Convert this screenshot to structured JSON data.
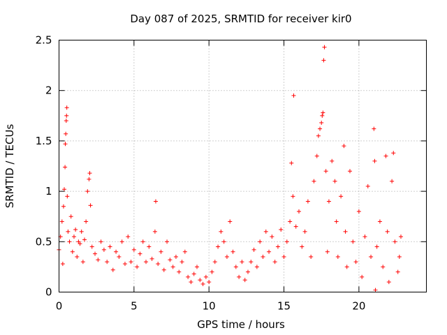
{
  "chart_data": {
    "type": "scatter",
    "title": "Day 087 of 2025, SRMTID for receiver kir0",
    "xlabel": "GPS time / hours",
    "ylabel": "SRMTID / TECUs",
    "xlim": [
      0,
      24.5
    ],
    "ylim": [
      0,
      2.5
    ],
    "xticks": [
      0,
      5,
      10,
      15,
      20
    ],
    "xtick_labels": [
      "0",
      "5",
      "10",
      "15",
      "20"
    ],
    "yticks": [
      0,
      0.5,
      1,
      1.5,
      2,
      2.5
    ],
    "ytick_labels": [
      "0",
      "0.5",
      "1",
      "1.5",
      "2",
      "2.5"
    ],
    "grid": true,
    "marker": "+",
    "colors": {
      "points": "#ff0000",
      "grid": "#a0a0a0",
      "axis": "#000000"
    },
    "series": [
      {
        "name": "SRMTID",
        "points": [
          [
            0.0,
            0.42
          ],
          [
            0.1,
            0.55
          ],
          [
            0.2,
            0.7
          ],
          [
            0.25,
            0.28
          ],
          [
            0.3,
            0.85
          ],
          [
            0.35,
            1.02
          ],
          [
            0.4,
            1.24
          ],
          [
            0.42,
            1.47
          ],
          [
            0.45,
            1.57
          ],
          [
            0.48,
            1.7
          ],
          [
            0.5,
            1.75
          ],
          [
            0.52,
            1.83
          ],
          [
            0.55,
            0.95
          ],
          [
            0.6,
            0.6
          ],
          [
            0.7,
            0.5
          ],
          [
            0.8,
            0.75
          ],
          [
            0.9,
            0.4
          ],
          [
            1.0,
            0.55
          ],
          [
            1.1,
            0.62
          ],
          [
            1.2,
            0.35
          ],
          [
            1.3,
            0.5
          ],
          [
            1.4,
            0.48
          ],
          [
            1.5,
            0.6
          ],
          [
            1.6,
            0.3
          ],
          [
            1.7,
            0.52
          ],
          [
            1.8,
            0.7
          ],
          [
            1.9,
            1.0
          ],
          [
            2.0,
            1.12
          ],
          [
            2.05,
            1.18
          ],
          [
            2.1,
            0.86
          ],
          [
            2.2,
            0.45
          ],
          [
            2.4,
            0.38
          ],
          [
            2.6,
            0.32
          ],
          [
            2.8,
            0.5
          ],
          [
            3.0,
            0.42
          ],
          [
            3.2,
            0.3
          ],
          [
            3.4,
            0.45
          ],
          [
            3.6,
            0.22
          ],
          [
            3.8,
            0.4
          ],
          [
            4.0,
            0.35
          ],
          [
            4.2,
            0.5
          ],
          [
            4.4,
            0.28
          ],
          [
            4.6,
            0.55
          ],
          [
            4.8,
            0.3
          ],
          [
            5.0,
            0.42
          ],
          [
            5.2,
            0.25
          ],
          [
            5.4,
            0.38
          ],
          [
            5.6,
            0.5
          ],
          [
            5.8,
            0.3
          ],
          [
            6.0,
            0.45
          ],
          [
            6.2,
            0.33
          ],
          [
            6.4,
            0.6
          ],
          [
            6.45,
            0.9
          ],
          [
            6.6,
            0.28
          ],
          [
            6.8,
            0.4
          ],
          [
            7.0,
            0.22
          ],
          [
            7.2,
            0.5
          ],
          [
            7.4,
            0.32
          ],
          [
            7.6,
            0.25
          ],
          [
            7.8,
            0.35
          ],
          [
            8.0,
            0.2
          ],
          [
            8.2,
            0.3
          ],
          [
            8.4,
            0.4
          ],
          [
            8.6,
            0.15
          ],
          [
            8.8,
            0.1
          ],
          [
            9.0,
            0.18
          ],
          [
            9.2,
            0.25
          ],
          [
            9.4,
            0.12
          ],
          [
            9.6,
            0.08
          ],
          [
            9.8,
            0.15
          ],
          [
            10.0,
            0.1
          ],
          [
            10.2,
            0.2
          ],
          [
            10.4,
            0.3
          ],
          [
            10.6,
            0.45
          ],
          [
            10.8,
            0.6
          ],
          [
            11.0,
            0.5
          ],
          [
            11.2,
            0.35
          ],
          [
            11.4,
            0.7
          ],
          [
            11.6,
            0.4
          ],
          [
            11.8,
            0.25
          ],
          [
            12.0,
            0.15
          ],
          [
            12.2,
            0.3
          ],
          [
            12.4,
            0.12
          ],
          [
            12.6,
            0.2
          ],
          [
            12.8,
            0.3
          ],
          [
            13.0,
            0.42
          ],
          [
            13.2,
            0.25
          ],
          [
            13.4,
            0.5
          ],
          [
            13.6,
            0.35
          ],
          [
            13.8,
            0.6
          ],
          [
            14.0,
            0.4
          ],
          [
            14.2,
            0.55
          ],
          [
            14.4,
            0.3
          ],
          [
            14.6,
            0.45
          ],
          [
            14.8,
            0.62
          ],
          [
            15.0,
            0.35
          ],
          [
            15.2,
            0.5
          ],
          [
            15.4,
            0.7
          ],
          [
            15.5,
            1.28
          ],
          [
            15.6,
            0.95
          ],
          [
            15.65,
            1.95
          ],
          [
            15.8,
            0.65
          ],
          [
            16.0,
            0.8
          ],
          [
            16.2,
            0.45
          ],
          [
            16.4,
            0.6
          ],
          [
            16.6,
            0.9
          ],
          [
            16.8,
            0.35
          ],
          [
            17.0,
            1.1
          ],
          [
            17.2,
            1.35
          ],
          [
            17.3,
            1.55
          ],
          [
            17.4,
            1.62
          ],
          [
            17.5,
            1.68
          ],
          [
            17.55,
            1.75
          ],
          [
            17.6,
            1.78
          ],
          [
            17.65,
            2.3
          ],
          [
            17.7,
            2.43
          ],
          [
            17.8,
            1.2
          ],
          [
            17.9,
            0.4
          ],
          [
            18.0,
            0.9
          ],
          [
            18.2,
            1.3
          ],
          [
            18.4,
            1.1
          ],
          [
            18.5,
            0.7
          ],
          [
            18.6,
            0.35
          ],
          [
            18.8,
            0.95
          ],
          [
            19.0,
            1.45
          ],
          [
            19.1,
            0.6
          ],
          [
            19.2,
            0.25
          ],
          [
            19.4,
            1.2
          ],
          [
            19.6,
            0.5
          ],
          [
            19.8,
            0.3
          ],
          [
            20.0,
            0.8
          ],
          [
            20.2,
            0.15
          ],
          [
            20.4,
            0.55
          ],
          [
            20.6,
            1.05
          ],
          [
            20.8,
            0.35
          ],
          [
            21.0,
            1.62
          ],
          [
            21.05,
            1.3
          ],
          [
            21.1,
            0.02
          ],
          [
            21.2,
            0.45
          ],
          [
            21.4,
            0.7
          ],
          [
            21.6,
            0.25
          ],
          [
            21.8,
            1.35
          ],
          [
            21.9,
            0.6
          ],
          [
            22.0,
            0.1
          ],
          [
            22.2,
            1.1
          ],
          [
            22.3,
            1.38
          ],
          [
            22.4,
            0.5
          ],
          [
            22.6,
            0.2
          ],
          [
            22.7,
            0.35
          ],
          [
            22.8,
            0.55
          ]
        ]
      }
    ]
  }
}
